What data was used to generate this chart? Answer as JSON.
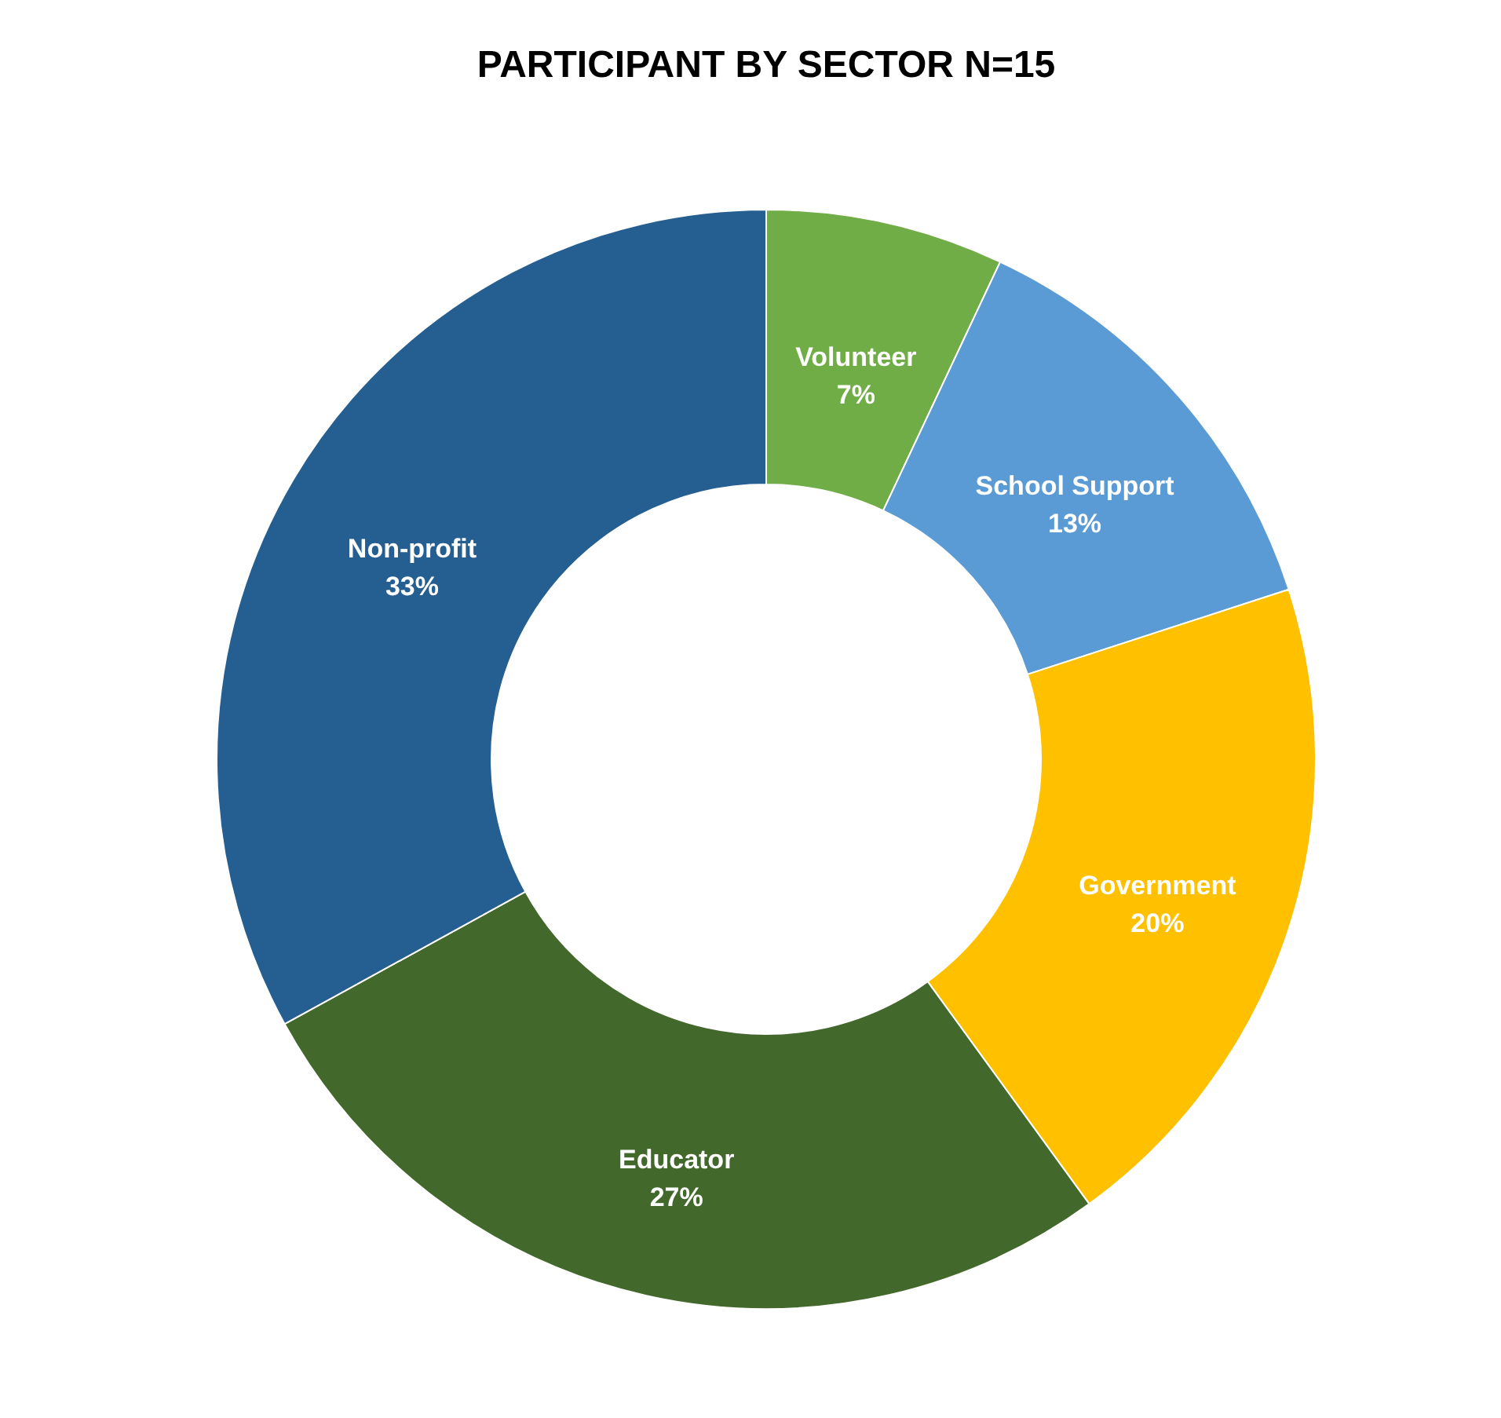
{
  "chart_data": {
    "type": "donut",
    "title": "PARTICIPANT BY SECTOR N=15",
    "categories": [
      "Volunteer",
      "School Support",
      "Government",
      "Educator",
      "Non-profit"
    ],
    "values": [
      7,
      13,
      20,
      27,
      33
    ],
    "value_labels": [
      "7%",
      "13%",
      "20%",
      "27%",
      "33%"
    ],
    "colors": [
      "#70ad47",
      "#5b9bd5",
      "#ffc000",
      "#43682b",
      "#255e91"
    ],
    "legend": false
  }
}
